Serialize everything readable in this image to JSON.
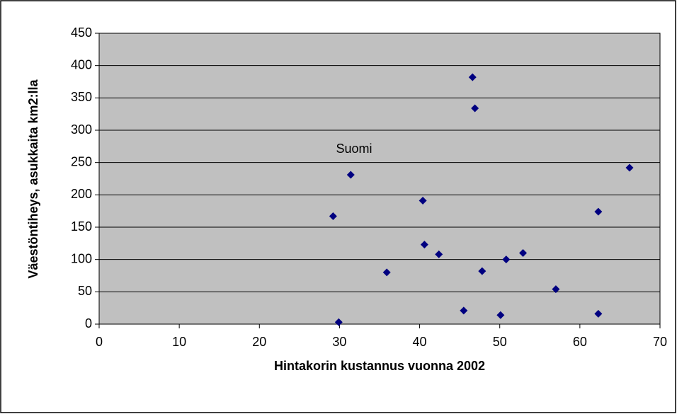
{
  "chart_data": {
    "type": "scatter",
    "xlabel": "Hintakorin kustannus vuonna 2002",
    "ylabel": "Väestöntiheys, asukkaita km2:lla",
    "annotations": [
      "Suomi"
    ],
    "color": "#000080",
    "plot_background": "#c0c0c0",
    "grid": true,
    "x": [
      29.2,
      29.9,
      31.4,
      35.9,
      40.4,
      40.6,
      42.4,
      45.5,
      46.6,
      46.9,
      47.8,
      50.1,
      50.8,
      52.9,
      57.0,
      62.3,
      62.3,
      66.2
    ],
    "values": [
      167,
      3,
      231,
      80,
      191,
      123,
      108,
      21,
      382,
      334,
      82,
      14,
      100,
      110,
      54,
      174,
      16,
      242
    ],
    "xlim": [
      0,
      70
    ],
    "xticks": [
      0,
      10,
      20,
      30,
      40,
      50,
      60,
      70
    ],
    "ylim": [
      0,
      450
    ],
    "yticks": [
      0,
      50,
      100,
      150,
      200,
      250,
      300,
      350,
      400,
      450
    ]
  }
}
